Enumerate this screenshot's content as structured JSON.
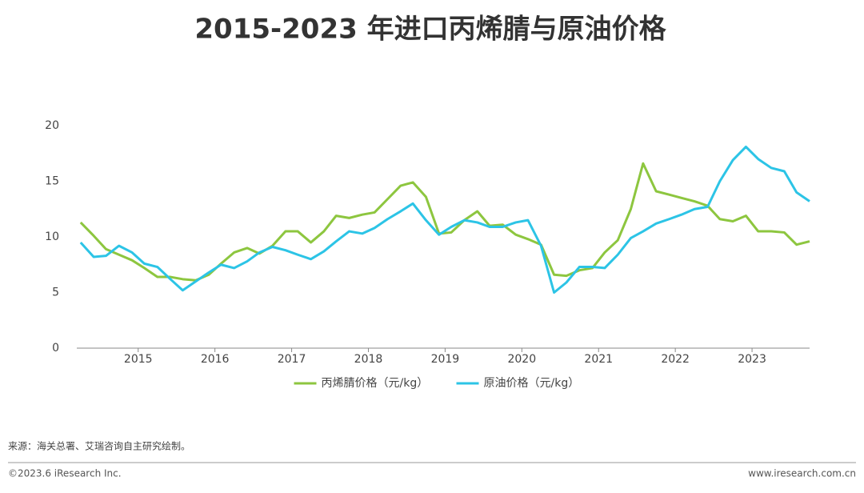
{
  "chart_data": {
    "type": "line",
    "title": "2015-2023 年进口丙烯腈与原油价格",
    "x": [
      2014.25,
      2014.42,
      2014.58,
      2014.75,
      2014.92,
      2015.08,
      2015.25,
      2015.42,
      2015.58,
      2015.75,
      2015.92,
      2016.08,
      2016.25,
      2016.42,
      2016.58,
      2016.75,
      2016.92,
      2017.08,
      2017.25,
      2017.42,
      2017.58,
      2017.75,
      2017.92,
      2018.08,
      2018.25,
      2018.42,
      2018.58,
      2018.75,
      2018.92,
      2019.08,
      2019.25,
      2019.42,
      2019.58,
      2019.75,
      2019.92,
      2020.08,
      2020.25,
      2020.42,
      2020.58,
      2020.75,
      2020.92,
      2021.08,
      2021.25,
      2021.42,
      2021.58,
      2021.75,
      2021.92,
      2022.08,
      2022.25,
      2022.42,
      2022.58,
      2022.75,
      2022.92,
      2023.08,
      2023.25,
      2023.42,
      2023.58,
      2023.75
    ],
    "series": [
      {
        "name": "丙烯腈价格（元/kg）",
        "color": "#8dc63f",
        "values": [
          11.3,
          10.1,
          8.9,
          8.4,
          7.9,
          7.2,
          6.4,
          6.4,
          6.2,
          6.1,
          6.6,
          7.6,
          8.6,
          9.0,
          8.5,
          9.2,
          10.5,
          10.5,
          9.5,
          10.5,
          11.9,
          11.7,
          12.0,
          12.2,
          13.4,
          14.6,
          14.9,
          13.6,
          10.3,
          10.4,
          11.5,
          12.3,
          11.0,
          11.1,
          10.2,
          9.8,
          9.3,
          6.6,
          6.5,
          7.0,
          7.2,
          8.6,
          9.7,
          12.5,
          16.6,
          14.1,
          13.8,
          13.5,
          13.2,
          12.8,
          11.6,
          11.4,
          11.9,
          10.5,
          10.5,
          10.4,
          9.3,
          9.6
        ]
      },
      {
        "name": "原油价格（元/kg）",
        "color": "#2cc4e6",
        "values": [
          9.5,
          8.2,
          8.3,
          9.2,
          8.6,
          7.6,
          7.3,
          6.2,
          5.2,
          6.0,
          6.8,
          7.5,
          7.2,
          7.8,
          8.6,
          9.1,
          8.8,
          8.4,
          8.0,
          8.7,
          9.6,
          10.5,
          10.3,
          10.8,
          11.6,
          12.3,
          13.0,
          11.5,
          10.2,
          10.9,
          11.5,
          11.3,
          10.9,
          10.9,
          11.3,
          11.5,
          9.2,
          5.0,
          5.9,
          7.3,
          7.3,
          7.2,
          8.4,
          9.9,
          10.5,
          11.2,
          11.6,
          12.0,
          12.5,
          12.7,
          15.0,
          16.9,
          18.1,
          17.0,
          16.2,
          15.9,
          14.0,
          13.2
        ]
      }
    ],
    "xlim": [
      2014.2,
      2023.75
    ],
    "xticks": [
      2015,
      2016,
      2017,
      2018,
      2019,
      2020,
      2021,
      2022,
      2023
    ],
    "ylim": [
      0,
      20
    ],
    "yticks": [
      0,
      5,
      10,
      15,
      20
    ],
    "grid": false,
    "legend": "bottom",
    "source": "来源：海关总署、艾瑞咨询自主研究绘制。",
    "copyright": "©2023.6 iResearch Inc.",
    "website": "www.iresearch.com.cn"
  }
}
